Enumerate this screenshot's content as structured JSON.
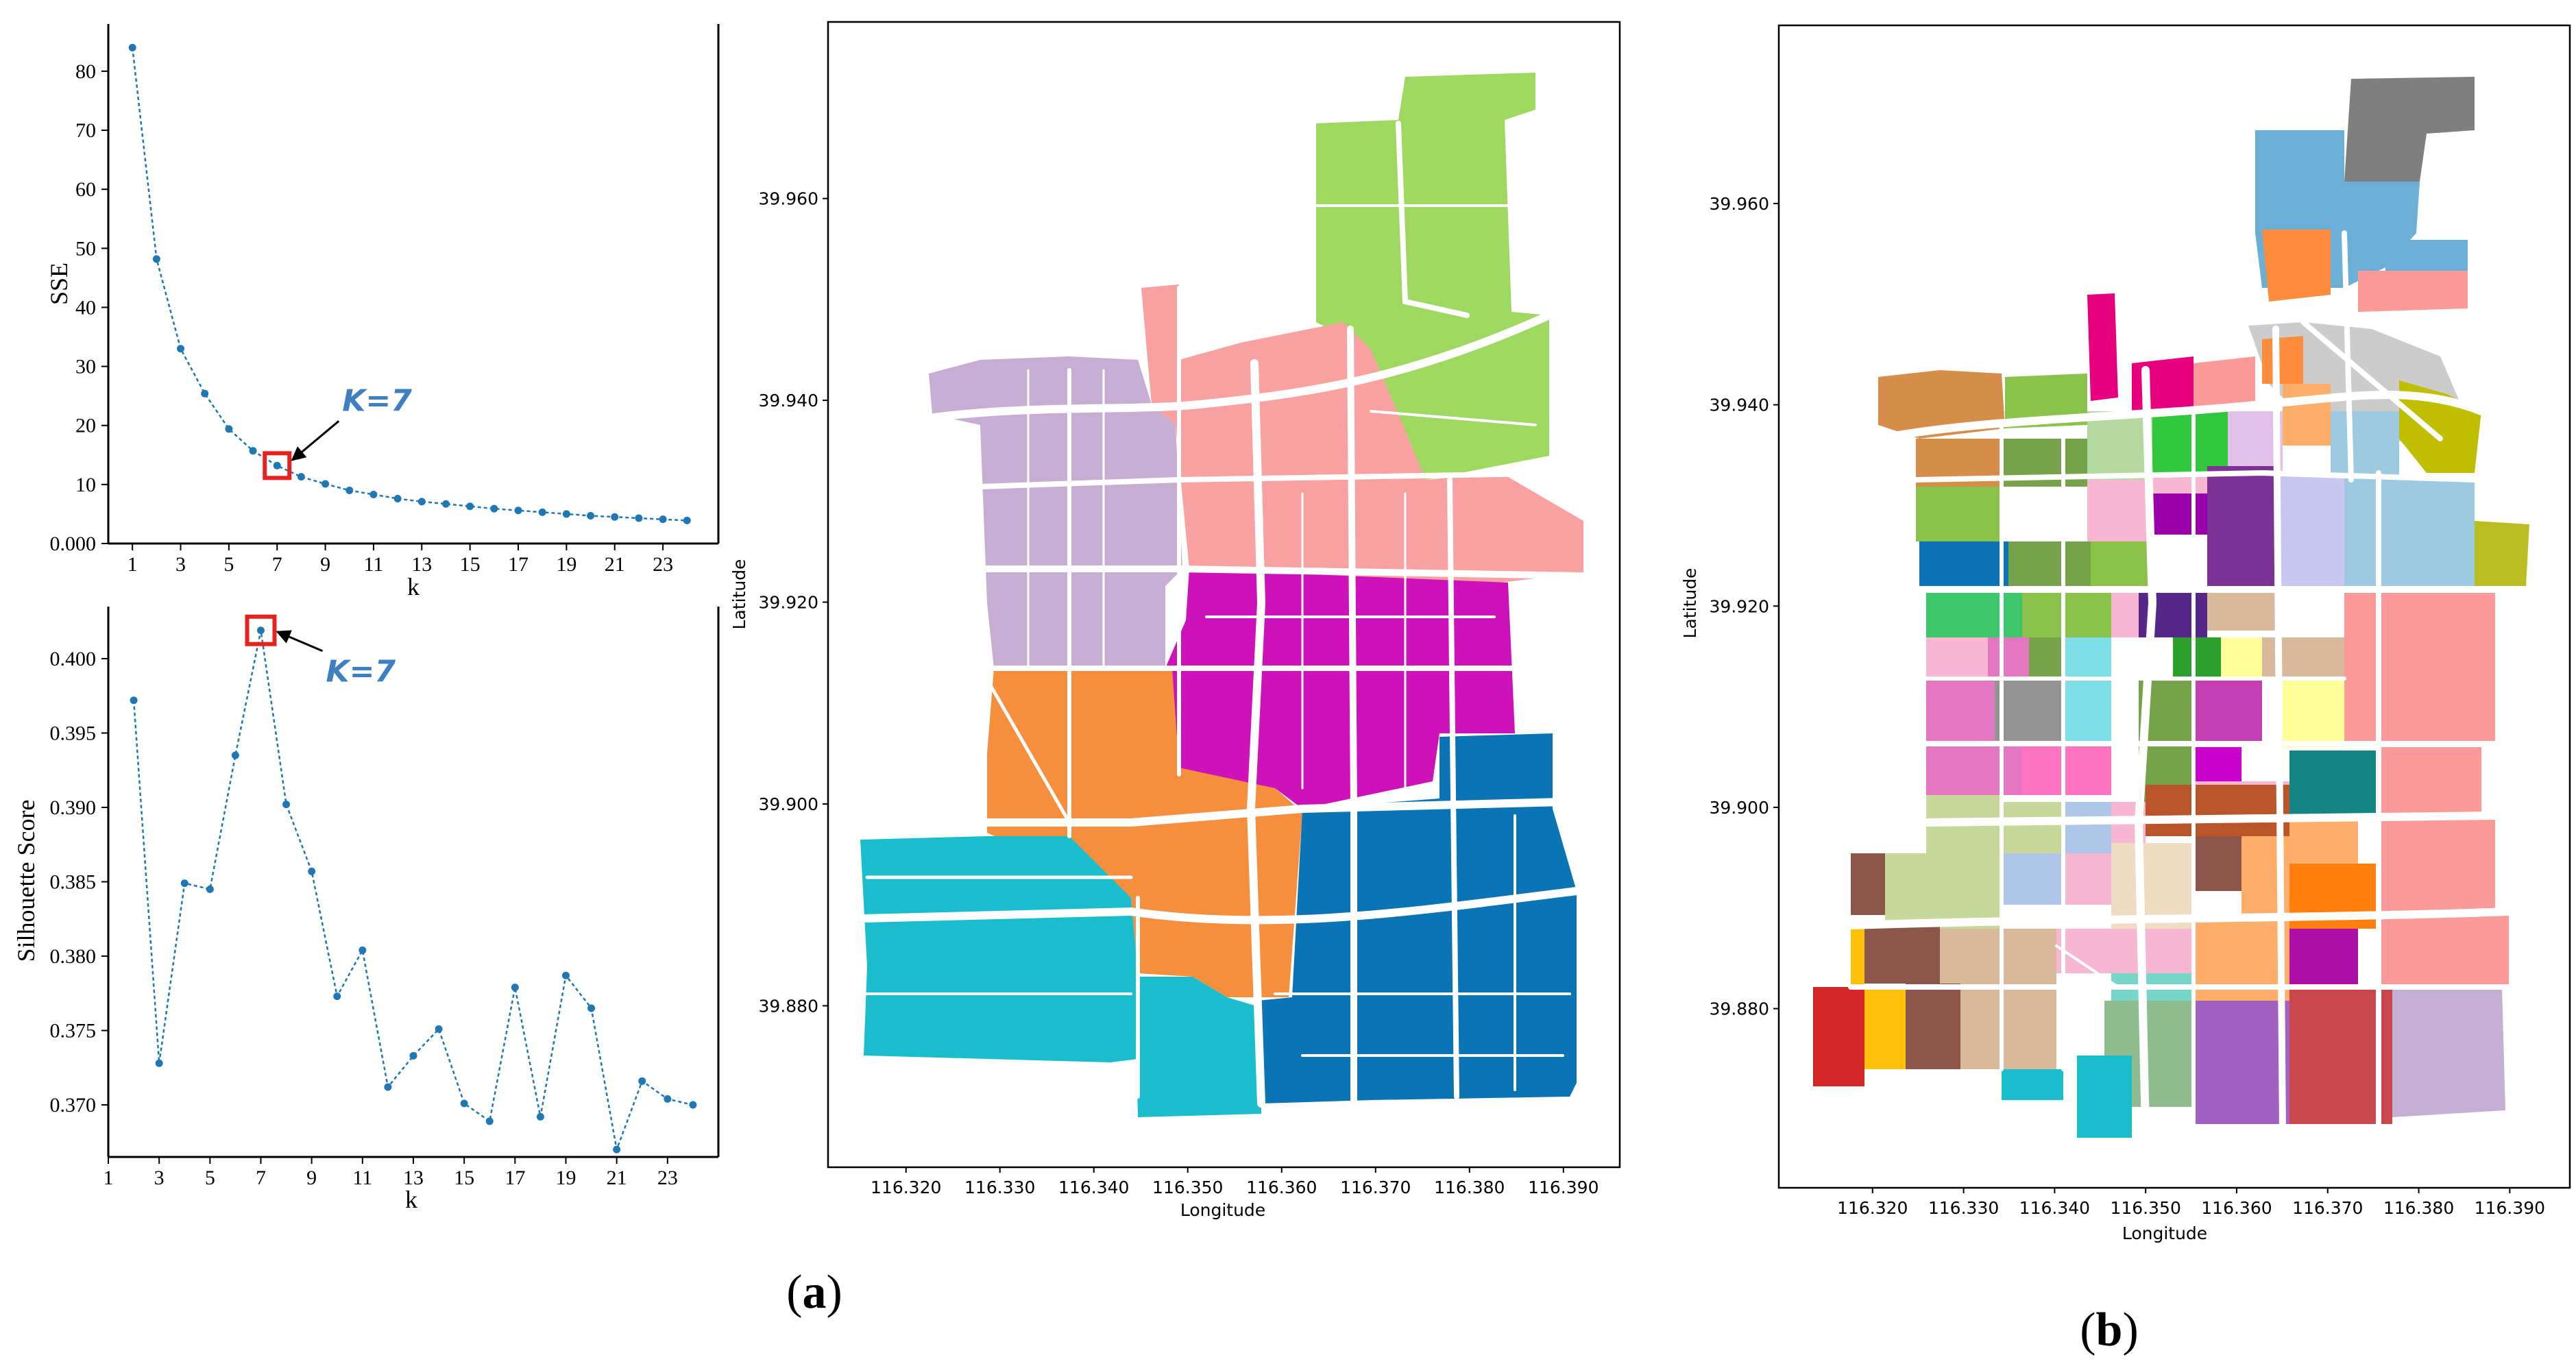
{
  "figure": {
    "panel_a_label": "(a)",
    "panel_b_label": "(b)",
    "panel_a_letter": "a",
    "panel_b_letter": "b"
  },
  "colors": {
    "series_line": "#1f77b4",
    "highlight_box": "#e8211d",
    "annotation": "#3d7fc1"
  },
  "chart_data": [
    {
      "type": "line",
      "name": "elbow",
      "xlabel": "k",
      "ylabel": "SSE",
      "x": [
        1,
        2,
        3,
        4,
        5,
        6,
        7,
        8,
        9,
        10,
        11,
        12,
        13,
        14,
        15,
        16,
        17,
        18,
        19,
        20,
        21,
        22,
        23,
        24
      ],
      "values": [
        84.0,
        48.2,
        33.0,
        25.4,
        19.4,
        15.7,
        13.2,
        11.3,
        10.1,
        9.0,
        8.3,
        7.6,
        7.1,
        6.7,
        6.3,
        5.9,
        5.6,
        5.3,
        5.0,
        4.7,
        4.5,
        4.3,
        4.1,
        3.9
      ],
      "xticks": [
        1,
        3,
        5,
        7,
        9,
        11,
        13,
        15,
        17,
        19,
        21,
        23
      ],
      "yticks": [
        0,
        10,
        20,
        30,
        40,
        50,
        60,
        70,
        80
      ],
      "xlim": [
        0,
        25.3
      ],
      "ylim": [
        0,
        88
      ],
      "highlight_x": 7,
      "annotation": "K=7"
    },
    {
      "type": "line",
      "name": "silhouette",
      "xlabel": "k",
      "ylabel": "Silhouette Score",
      "x": [
        2,
        3,
        4,
        5,
        6,
        7,
        8,
        9,
        10,
        11,
        12,
        13,
        14,
        15,
        16,
        17,
        18,
        19,
        20,
        21,
        22,
        23,
        24
      ],
      "values": [
        0.3972,
        0.3728,
        0.3849,
        0.3845,
        0.3935,
        0.4019,
        0.3902,
        0.3857,
        0.3773,
        0.3804,
        0.3712,
        0.3733,
        0.3751,
        0.3701,
        0.3689,
        0.3779,
        0.3692,
        0.3787,
        0.3765,
        0.367,
        0.3716,
        0.3704,
        0.37
      ],
      "xticks": [
        1,
        3,
        5,
        7,
        9,
        11,
        13,
        15,
        17,
        19,
        21,
        23
      ],
      "yticks": [
        0.37,
        0.375,
        0.38,
        0.385,
        0.39,
        0.395,
        0.4
      ],
      "xlim": [
        1,
        25
      ],
      "ylim": [
        0.3665,
        0.4035
      ],
      "highlight_x": 7,
      "annotation": "K=7"
    },
    {
      "type": "map",
      "name": "map_a",
      "xlabel": "Longitude",
      "ylabel": "Latitude",
      "xticks": [
        "116.320",
        "116.330",
        "116.340",
        "116.350",
        "116.360",
        "116.370",
        "116.380",
        "116.390"
      ],
      "yticks": [
        "39.880",
        "39.900",
        "39.920",
        "39.940",
        "39.960"
      ],
      "xlim": [
        116.3117,
        116.396
      ],
      "ylim": [
        39.864,
        39.9775
      ],
      "legend": "none"
    },
    {
      "type": "map",
      "name": "map_b",
      "xlabel": "Longitude",
      "ylabel": "Latitude",
      "xticks": [
        "116.320",
        "116.330",
        "116.340",
        "116.350",
        "116.360",
        "116.370",
        "116.380",
        "116.390"
      ],
      "yticks": [
        "39.880",
        "39.900",
        "39.920",
        "39.940",
        "39.960"
      ],
      "xlim": [
        116.3097,
        116.3966
      ],
      "ylim": [
        39.8622,
        39.9777
      ],
      "legend": "none"
    }
  ]
}
